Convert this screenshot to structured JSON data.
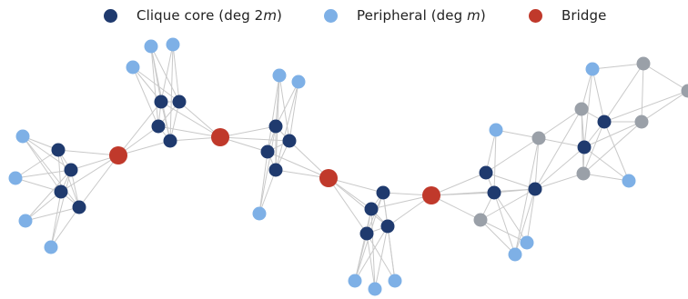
{
  "legend": {
    "items": [
      {
        "key": "core",
        "label_prefix": "Clique core (deg 2",
        "label_var": "m",
        "label_suffix": ")",
        "color": "#1f3a6e"
      },
      {
        "key": "peripheral",
        "label_prefix": "Peripheral (deg ",
        "label_var": "m",
        "label_suffix": ")",
        "color": "#7eb0e6"
      },
      {
        "key": "bridge",
        "label_prefix": "Bridge",
        "label_var": "",
        "label_suffix": "",
        "color": "#c0392b"
      }
    ]
  },
  "node_colors": {
    "core": "#1f3a6e",
    "peripheral": "#7eb0e6",
    "bridge": "#c0392b",
    "other": "#9aa0a8"
  },
  "edge_color": "#c9c9c9"
}
